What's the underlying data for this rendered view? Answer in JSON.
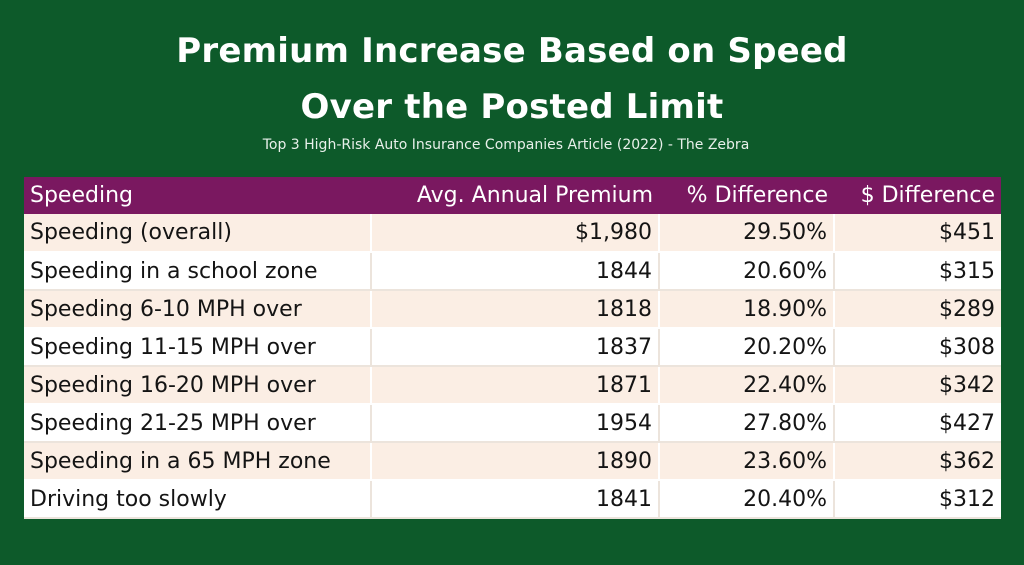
{
  "title_line1": "Premium Increase Based on Speed",
  "title_line2": "Over the Posted Limit",
  "subtitle": "Top 3 High-Risk Auto Insurance Companies Article (2022) - The Zebra",
  "colors": {
    "background": "#0d5a2a",
    "header": "#7a1860",
    "row_alt": "#fbeee4",
    "row_plain": "#ffffff"
  },
  "chart_data": {
    "type": "table",
    "title": "Premium Increase Based on Speed Over the Posted Limit",
    "subtitle": "Top 3 High-Risk Auto Insurance Companies Article (2022) - The Zebra",
    "columns": [
      "Speeding",
      "Avg. Annual Premium",
      "% Difference",
      "$ Difference"
    ],
    "rows": [
      [
        "Speeding (overall)",
        "$1,980",
        "29.50%",
        "$451"
      ],
      [
        "Speeding in a school zone",
        "1844",
        "20.60%",
        "$315"
      ],
      [
        "Speeding 6-10 MPH over",
        "1818",
        "18.90%",
        "$289"
      ],
      [
        "Speeding 11-15 MPH over",
        "1837",
        "20.20%",
        "$308"
      ],
      [
        "Speeding 16-20 MPH over",
        "1871",
        "22.40%",
        "$342"
      ],
      [
        "Speeding 21-25 MPH over",
        "1954",
        "27.80%",
        "$427"
      ],
      [
        "Speeding in a 65 MPH zone",
        "1890",
        "23.60%",
        "$362"
      ],
      [
        "Driving too slowly",
        "1841",
        "20.40%",
        "$312"
      ]
    ]
  }
}
